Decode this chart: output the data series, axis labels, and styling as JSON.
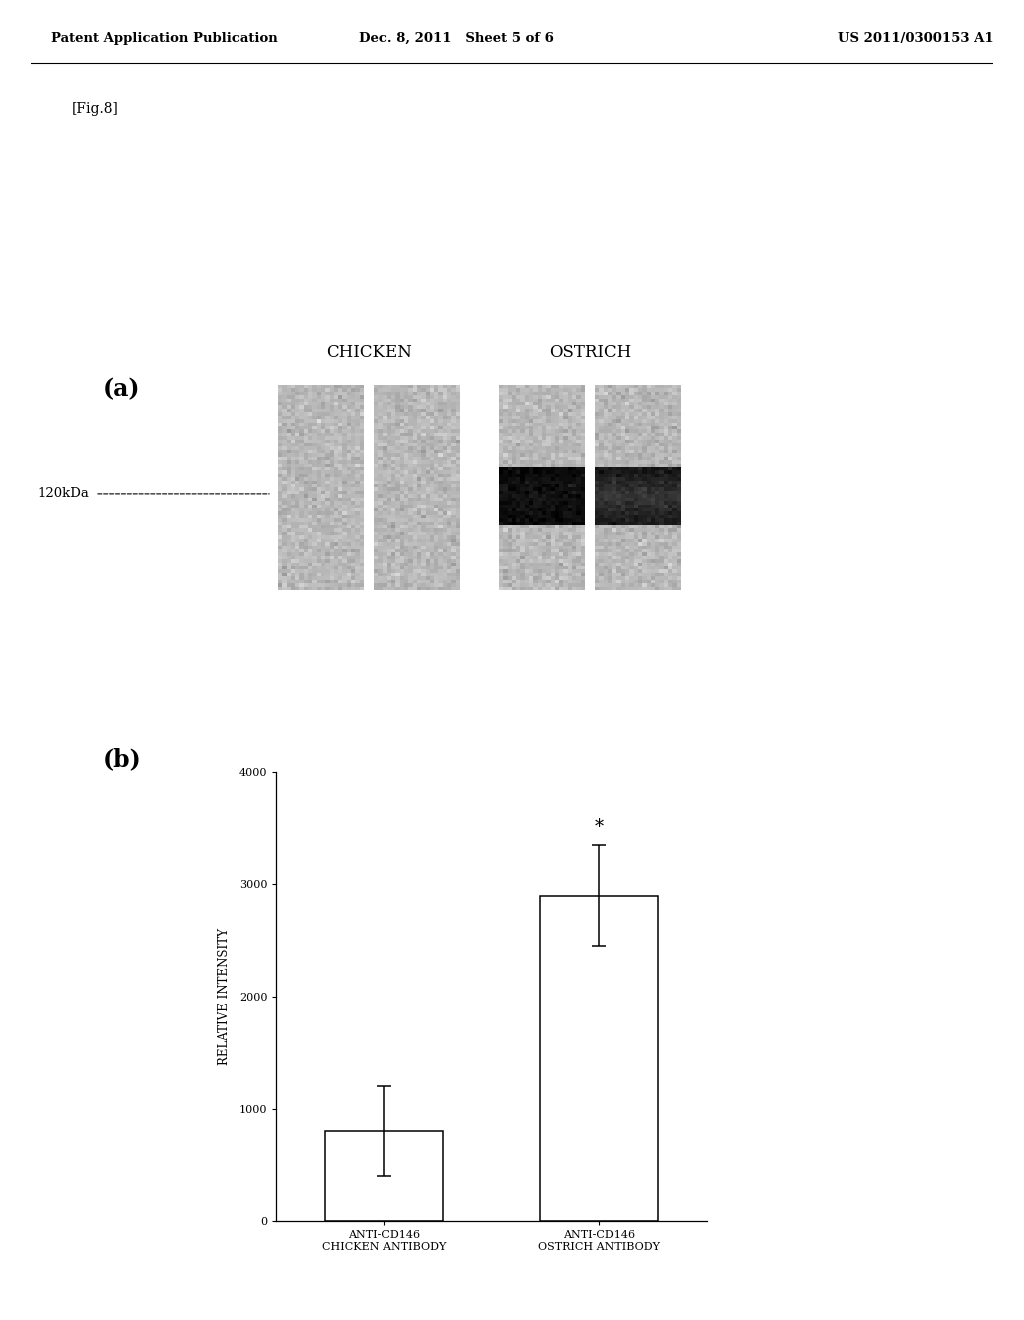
{
  "header_left": "Patent Application Publication",
  "header_mid": "Dec. 8, 2011   Sheet 5 of 6",
  "header_right": "US 2011/0300153 A1",
  "fig_label": "[Fig.8]",
  "panel_a_label": "(a)",
  "panel_b_label": "(b)",
  "chicken_label": "CHICKEN",
  "ostrich_label": "OSTRICH",
  "kda_label": "120kDa",
  "ylabel": "RELATIVE INTENSITY",
  "bar_categories": [
    "ANTI-CD146\nCHICKEN ANTIBODY",
    "ANTI-CD146\nOSTRICH ANTIBODY"
  ],
  "bar_values": [
    800,
    2900
  ],
  "bar_errors": [
    400,
    450
  ],
  "bar_colors": [
    "#ffffff",
    "#ffffff"
  ],
  "bar_edgecolors": [
    "#000000",
    "#000000"
  ],
  "ylim": [
    0,
    4000
  ],
  "yticks": [
    0,
    1000,
    2000,
    3000,
    4000
  ],
  "significance_star": "*",
  "bg_color": "#ffffff",
  "text_color": "#000000",
  "gel_bg_color_light": "#c0c0c0",
  "gel_bg_color": "#b8b8b8",
  "gel_band_color_dark": "#1a1a1a",
  "gel_band_color_medium": "#444444"
}
